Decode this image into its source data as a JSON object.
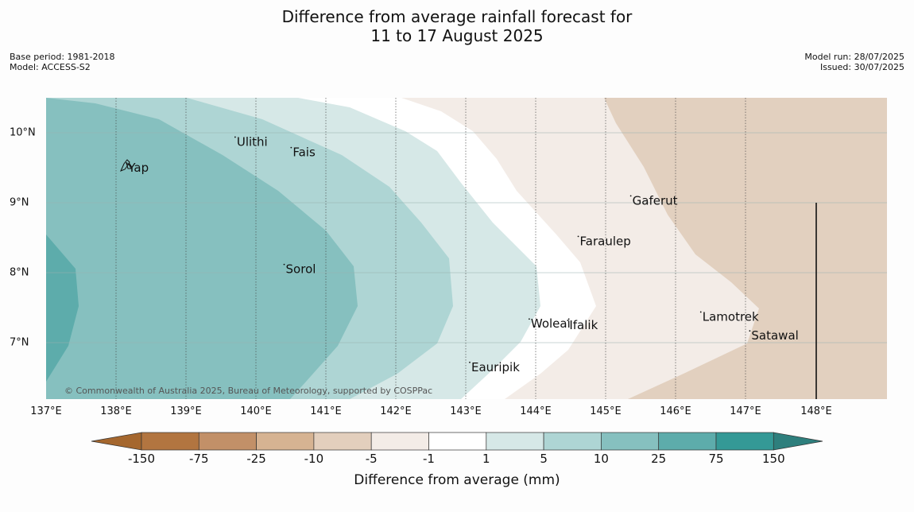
{
  "title": {
    "line1": "Difference from average rainfall forecast for",
    "line2": "11 to 17 August 2025"
  },
  "meta": {
    "base_period": "Base period: 1981-2018",
    "model": "Model: ACCESS-S2",
    "model_run": "Model run: 28/07/2025",
    "issued": "Issued: 30/07/2025"
  },
  "map": {
    "copyright": "© Commonwealth of Australia 2025, Bureau of Meteorology, supported by COSPPac",
    "lon_ticks": [
      "137°E",
      "138°E",
      "139°E",
      "140°E",
      "141°E",
      "142°E",
      "143°E",
      "144°E",
      "145°E",
      "146°E",
      "147°E",
      "148°E"
    ],
    "lat_ticks": [
      "10°N",
      "9°N",
      "8°N",
      "7°N"
    ],
    "places": [
      {
        "name": "Yap",
        "lon": 138.15,
        "lat": 9.5
      },
      {
        "name": "Ulithi",
        "lon": 139.7,
        "lat": 9.87
      },
      {
        "name": "Fais",
        "lon": 140.5,
        "lat": 9.72
      },
      {
        "name": "Gaferut",
        "lon": 145.35,
        "lat": 9.03
      },
      {
        "name": "Faraulep",
        "lon": 144.6,
        "lat": 8.45
      },
      {
        "name": "Sorol",
        "lon": 140.4,
        "lat": 8.05
      },
      {
        "name": "Woleai",
        "lon": 143.9,
        "lat": 7.27
      },
      {
        "name": "Ifalik",
        "lon": 144.45,
        "lat": 7.25
      },
      {
        "name": "Lamotrek",
        "lon": 146.35,
        "lat": 7.37
      },
      {
        "name": "Satawal",
        "lon": 147.05,
        "lat": 7.1
      },
      {
        "name": "Eauripik",
        "lon": 143.05,
        "lat": 6.65
      }
    ]
  },
  "colorbar": {
    "title": "Difference from average (mm)",
    "labels": [
      "-150",
      "-75",
      "-25",
      "-10",
      "-5",
      "-1",
      "1",
      "5",
      "10",
      "25",
      "75",
      "150"
    ],
    "colors": [
      "#a5672e",
      "#b27540",
      "#c29068",
      "#d6b392",
      "#e3cfbd",
      "#f3ece7",
      "#ffffff",
      "#d6e8e7",
      "#aed5d4",
      "#86c0bf",
      "#5dacab",
      "#349996",
      "#2e7f7d"
    ]
  }
}
